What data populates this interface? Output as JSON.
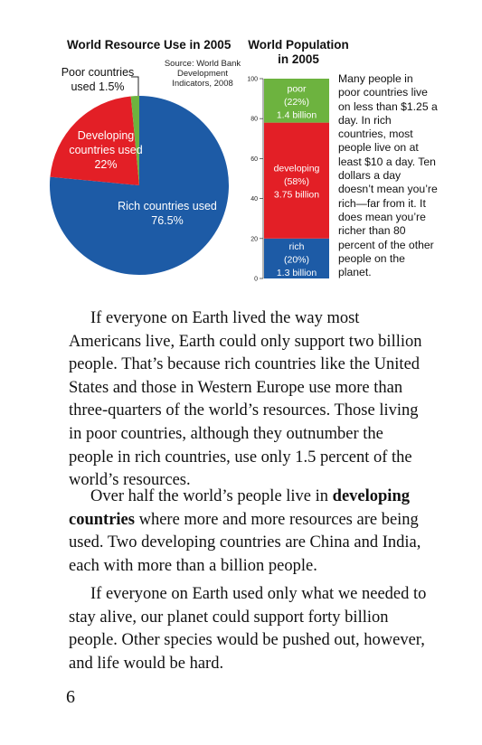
{
  "pie_chart": {
    "title": "World Resource Use in 2005",
    "source": "Source: World Bank Development Indicators, 2008",
    "label_poor": "Poor countries used 1.5%",
    "label_developing": "Developing countries used 22%",
    "label_rich": "Rich countries used 76.5%",
    "colors": {
      "rich": "#1d5ba6",
      "developing": "#e31f26",
      "poor": "#6db33f"
    }
  },
  "bar_chart": {
    "title": "World Population in 2005",
    "segments": {
      "poor": {
        "line1": "poor",
        "line2": "(22%)",
        "line3": "1.4 billion"
      },
      "developing": {
        "line1": "developing",
        "line2": "(58%)",
        "line3": "3.75 billion"
      },
      "rich": {
        "line1": "rich",
        "line2": "(20%)",
        "line3": "1.3 billion"
      }
    },
    "ticks": [
      "0",
      "20",
      "40",
      "60",
      "80",
      "100"
    ]
  },
  "side_text": "Many people in poor countries live on less than $1.25 a day. In rich countries, most people live on at least $10 a day. Ten dollars a day doesn’t mean you’re rich—far from it. It does mean you’re richer than 80 percent of the other people on the planet.",
  "body": {
    "para1": "If everyone on Earth lived the way most Americans live, Earth could only support two billion people. That’s because rich countries like the United States and those in Western Europe use more than three-quarters of the world’s resources. Those living in poor countries, although they outnumber the people in rich countries, use only 1.5 percent of the world’s resources.",
    "para2_before": "Over half the world’s people live in ",
    "para2_bold": "developing countries",
    "para2_after": " where more and more resources are being used. Two developing countries are China and India, each with more than a billion people.",
    "para3": "If everyone on Earth used only what we needed to stay alive, our planet could support forty billion people. Other species would be pushed out, however, and life would be hard."
  },
  "page_number": "6",
  "chart_data": [
    {
      "type": "pie",
      "title": "World Resource Use in 2005",
      "categories": [
        "Rich countries",
        "Developing countries",
        "Poor countries"
      ],
      "values": [
        76.5,
        22,
        1.5
      ]
    },
    {
      "type": "bar",
      "title": "World Population in 2005",
      "stacked": true,
      "categories": [
        "rich",
        "developing",
        "poor"
      ],
      "values": [
        20,
        58,
        22
      ],
      "populations": [
        "1.3 billion",
        "3.75 billion",
        "1.4 billion"
      ],
      "ylim": [
        0,
        100
      ],
      "yticks": [
        0,
        20,
        40,
        60,
        80,
        100
      ]
    }
  ]
}
